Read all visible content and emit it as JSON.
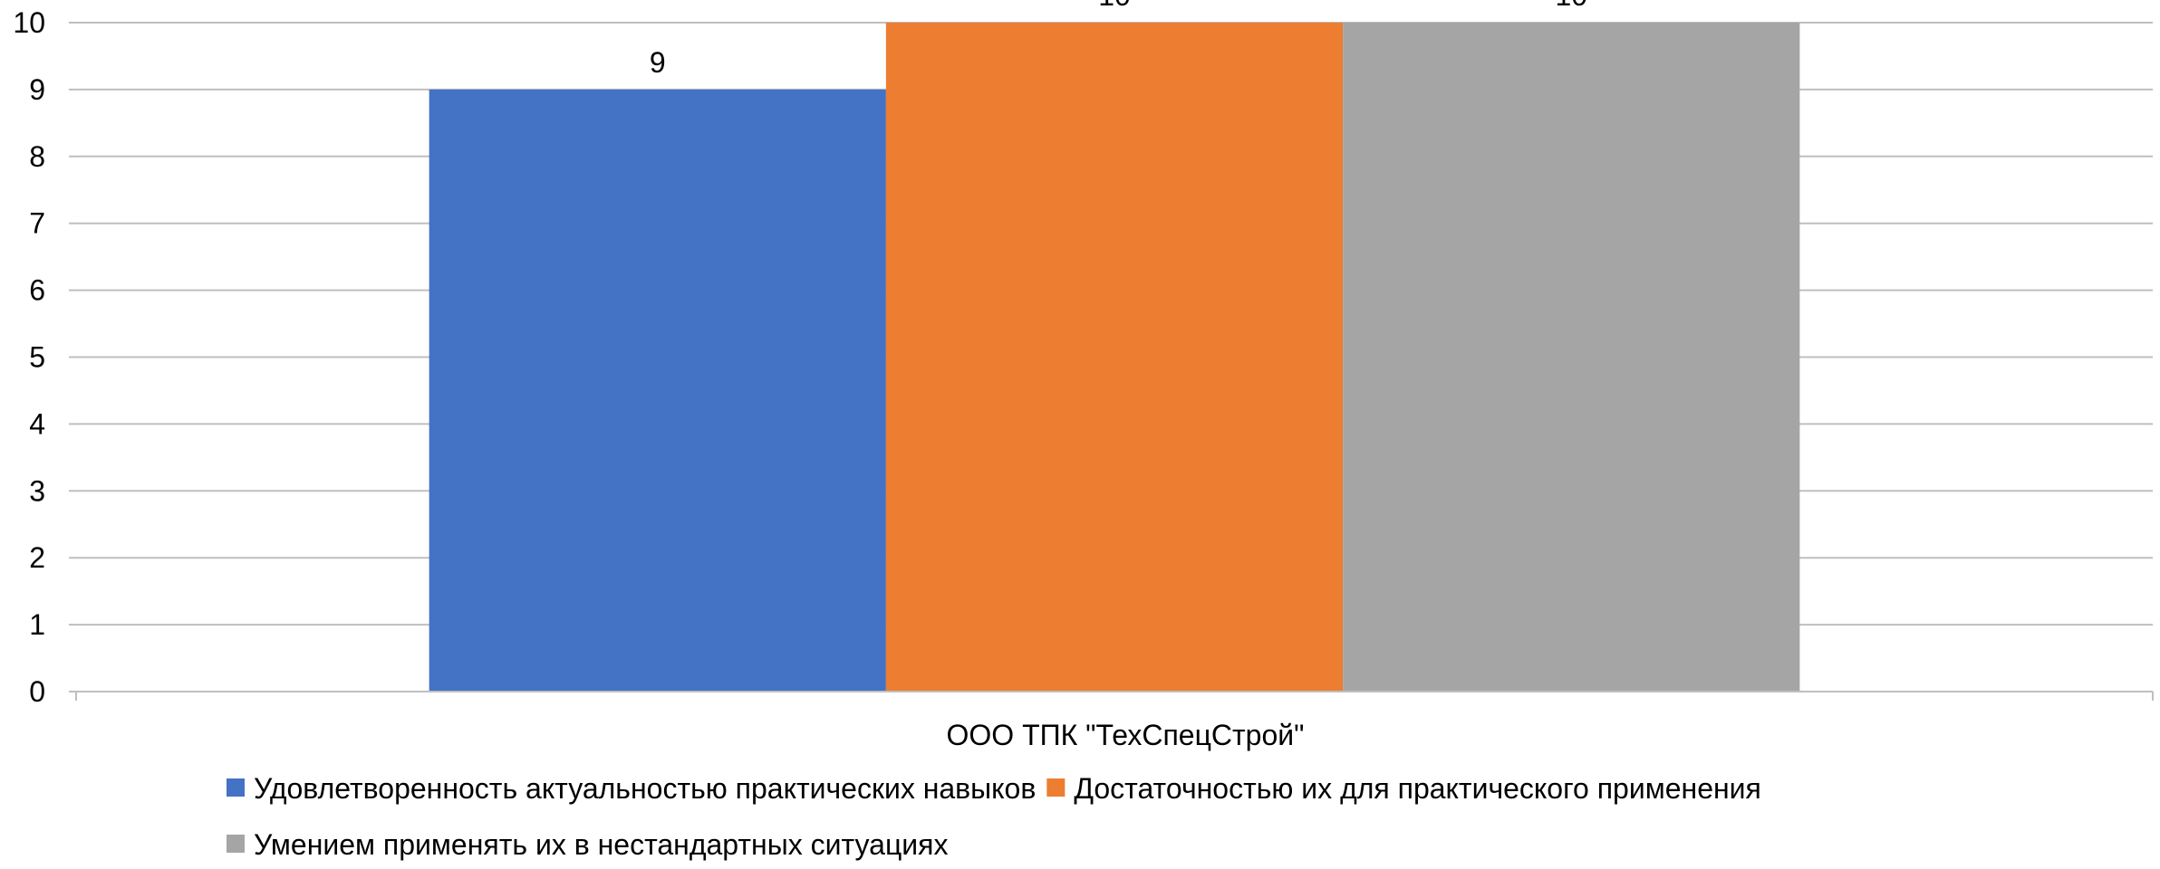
{
  "chart_data": {
    "type": "bar",
    "categories": [
      "ООО ТПК \"ТехСпецСтрой\""
    ],
    "series": [
      {
        "name": "Удовлетворенность актуальностью практических навыков",
        "values": [
          9
        ],
        "color": "#4472C4"
      },
      {
        "name": "Достаточностью их для практического применения",
        "values": [
          10
        ],
        "color": "#ED7D31"
      },
      {
        "name": "Умением применять их в нестандартных ситуациях",
        "values": [
          10
        ],
        "color": "#A5A5A5"
      }
    ],
    "ylim": [
      0,
      10
    ],
    "yticks": [
      0,
      1,
      2,
      3,
      4,
      5,
      6,
      7,
      8,
      9,
      10
    ],
    "grid": true,
    "legend_position": "bottom",
    "data_labels": true,
    "title": "",
    "xlabel": "",
    "ylabel": ""
  }
}
